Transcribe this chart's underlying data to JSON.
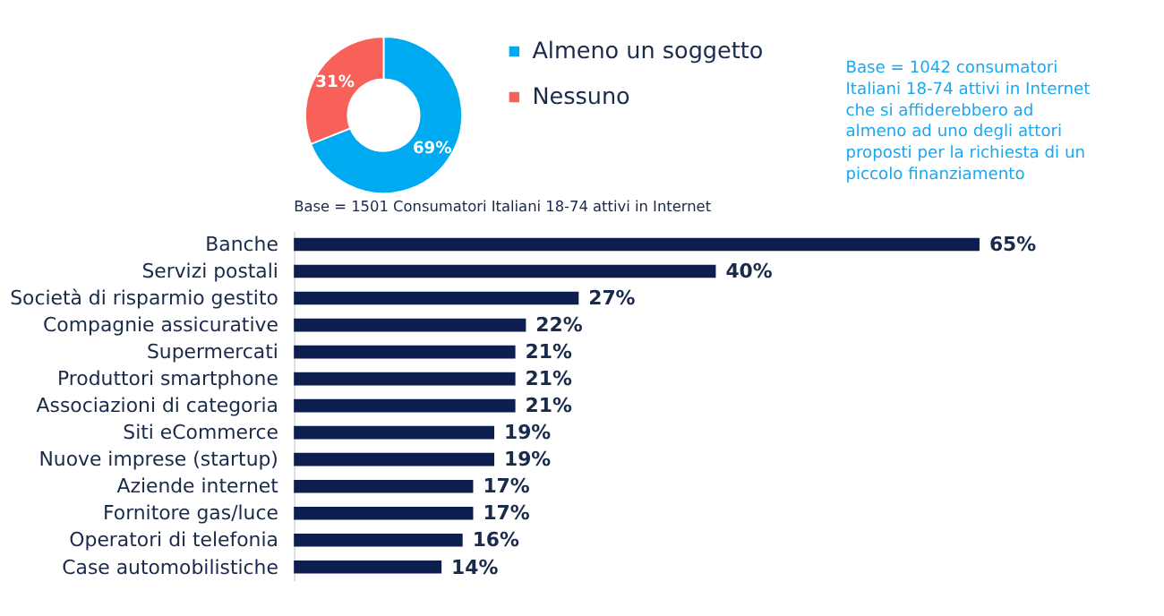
{
  "chart_data": [
    {
      "type": "donut",
      "categories": [
        "Almeno un soggetto",
        "Nessuno"
      ],
      "values": [
        69,
        31
      ],
      "colors": [
        "#00aaf0",
        "#f8605a"
      ],
      "value_labels": [
        "69%",
        "31%"
      ],
      "legend": "right",
      "annotations": [
        "Base = 1501 Consumatori Italiani 18-74 attivi in Internet",
        "Base = 1042 consumatori\nItaliani 18-74 attivi in Internet\nche si affiderebbero ad\nalmeno ad uno degli attori\nproposti per la richiesta di un\npiccolo finanziamento"
      ]
    },
    {
      "type": "bar",
      "orientation": "horizontal",
      "categories": [
        "Banche",
        "Servizi postali",
        "Società di risparmio gestito",
        "Compagnie assicurative",
        "Supermercati",
        "Produttori smartphone",
        "Associazioni di categoria",
        "Siti eCommerce",
        "Nuove imprese (startup)",
        "Aziende internet",
        "Fornitore gas/luce",
        "Operatori di telefonia",
        "Case automobilistiche"
      ],
      "values": [
        65,
        40,
        27,
        22,
        21,
        21,
        21,
        19,
        19,
        17,
        17,
        16,
        14
      ],
      "color": "#0c1f4f",
      "value_labels": [
        "65%",
        "40%",
        "27%",
        "22%",
        "21%",
        "21%",
        "21%",
        "19%",
        "19%",
        "17%",
        "17%",
        "16%",
        "14%"
      ],
      "tick_labels": "y"
    }
  ]
}
